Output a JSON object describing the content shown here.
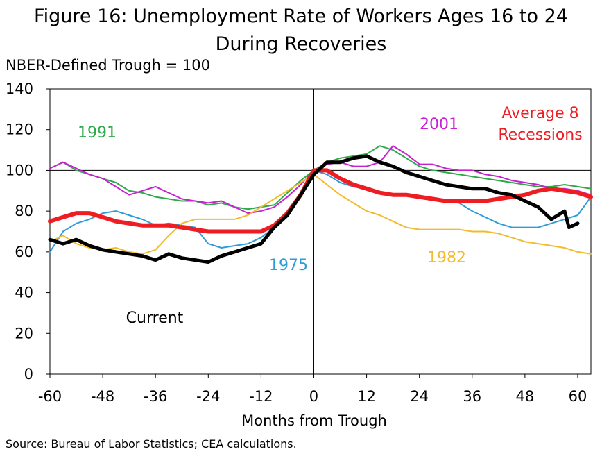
{
  "title_line1": "Figure 16: Unemployment Rate of Workers Ages 16 to 24",
  "title_line2": "During Recoveries",
  "subtitle": "NBER-Defined Trough = 100",
  "source": "Source: Bureau of Labor Statistics; CEA calculations.",
  "chart_data": {
    "type": "line",
    "title": "Figure 16: Unemployment Rate of Workers Ages 16 to 24 During Recoveries",
    "xlabel": "Months from Trough",
    "ylabel": "NBER-Defined Trough = 100",
    "xlim": [
      -60,
      63
    ],
    "ylim": [
      0,
      140
    ],
    "xticks": [
      -60,
      -48,
      -36,
      -24,
      -12,
      0,
      12,
      24,
      36,
      48,
      60
    ],
    "yticks": [
      0,
      20,
      40,
      60,
      80,
      100,
      120,
      140
    ],
    "reference_line_y": 100,
    "reference_line_x": 0,
    "grid": false,
    "series": [
      {
        "name": "1991",
        "color": "#2eaa4a",
        "width": 2,
        "x": [
          -60,
          -57,
          -54,
          -51,
          -48,
          -45,
          -42,
          -39,
          -36,
          -33,
          -30,
          -27,
          -24,
          -21,
          -18,
          -15,
          -12,
          -9,
          -6,
          -3,
          0,
          3,
          6,
          9,
          12,
          15,
          18,
          21,
          24,
          27,
          30,
          33,
          36,
          39,
          42,
          45,
          48,
          51,
          54,
          57,
          60,
          63
        ],
        "y": [
          101,
          104,
          100,
          98,
          96,
          94,
          90,
          89,
          87,
          86,
          85,
          85,
          83,
          84,
          82,
          81,
          82,
          83,
          89,
          95,
          100,
          104,
          106,
          107,
          108,
          112,
          110,
          106,
          102,
          100,
          99,
          98,
          97,
          96,
          95,
          94,
          93,
          92,
          92,
          93,
          92,
          91
        ]
      },
      {
        "name": "2001",
        "color": "#c81fd1",
        "width": 2,
        "x": [
          -60,
          -57,
          -54,
          -51,
          -48,
          -45,
          -42,
          -39,
          -36,
          -33,
          -30,
          -27,
          -24,
          -21,
          -18,
          -15,
          -12,
          -9,
          -6,
          -3,
          0,
          3,
          6,
          9,
          12,
          15,
          18,
          21,
          24,
          27,
          30,
          33,
          36,
          39,
          42,
          45,
          48,
          51,
          54,
          57,
          60,
          63
        ],
        "y": [
          101,
          104,
          101,
          98,
          96,
          92,
          88,
          90,
          92,
          89,
          86,
          85,
          84,
          85,
          82,
          79,
          80,
          82,
          87,
          93,
          100,
          103,
          104,
          102,
          102,
          104,
          112,
          108,
          103,
          103,
          101,
          100,
          100,
          98,
          97,
          95,
          94,
          93,
          91,
          91,
          90,
          88
        ]
      },
      {
        "name": "1975",
        "color": "#2e9cd6",
        "width": 2,
        "x": [
          -60,
          -57,
          -54,
          -51,
          -48,
          -45,
          -42,
          -39,
          -36,
          -33,
          -30,
          -27,
          -24,
          -21,
          -18,
          -15,
          -12,
          -9,
          -6,
          -3,
          0,
          3,
          6,
          9,
          12,
          15,
          18,
          21,
          24,
          27,
          30,
          33,
          36,
          39,
          42,
          45,
          48,
          51,
          54,
          57,
          60,
          63
        ],
        "y": [
          60,
          70,
          74,
          76,
          79,
          80,
          78,
          76,
          73,
          74,
          73,
          72,
          64,
          62,
          63,
          64,
          67,
          72,
          78,
          88,
          100,
          98,
          94,
          92,
          91,
          89,
          88,
          88,
          87,
          86,
          85,
          84,
          80,
          77,
          74,
          72,
          72,
          72,
          74,
          76,
          78,
          87
        ]
      },
      {
        "name": "1982",
        "color": "#f2bb2e",
        "width": 2,
        "x": [
          -60,
          -57,
          -54,
          -51,
          -48,
          -45,
          -42,
          -39,
          -36,
          -33,
          -30,
          -27,
          -24,
          -21,
          -18,
          -15,
          -12,
          -9,
          -6,
          -3,
          0,
          3,
          6,
          9,
          12,
          15,
          18,
          21,
          24,
          27,
          30,
          33,
          36,
          39,
          42,
          45,
          48,
          51,
          54,
          57,
          60,
          63
        ],
        "y": [
          65,
          68,
          64,
          62,
          61,
          62,
          60,
          59,
          61,
          68,
          74,
          76,
          76,
          76,
          76,
          78,
          82,
          86,
          90,
          94,
          98,
          93,
          88,
          84,
          80,
          78,
          75,
          72,
          71,
          71,
          71,
          71,
          70,
          70,
          69,
          67,
          65,
          64,
          63,
          62,
          60,
          59
        ]
      },
      {
        "name": "Average 8 Recessions",
        "color": "#ee1d23",
        "width": 6,
        "x": [
          -60,
          -57,
          -54,
          -51,
          -48,
          -45,
          -42,
          -39,
          -36,
          -33,
          -30,
          -27,
          -24,
          -21,
          -18,
          -15,
          -12,
          -9,
          -6,
          -3,
          0,
          3,
          6,
          9,
          12,
          15,
          18,
          21,
          24,
          27,
          30,
          33,
          36,
          39,
          42,
          45,
          48,
          51,
          54,
          57,
          60,
          63
        ],
        "y": [
          75,
          77,
          79,
          79,
          77,
          75,
          74,
          73,
          73,
          73,
          72,
          71,
          70,
          70,
          70,
          70,
          70,
          73,
          79,
          88,
          100,
          100,
          96,
          93,
          91,
          89,
          88,
          88,
          87,
          86,
          85,
          85,
          85,
          85,
          86,
          87,
          88,
          90,
          91,
          90,
          89,
          87
        ]
      },
      {
        "name": "Current",
        "color": "#000000",
        "width": 5,
        "x": [
          -60,
          -57,
          -54,
          -51,
          -48,
          -45,
          -42,
          -39,
          -36,
          -33,
          -30,
          -27,
          -24,
          -21,
          -18,
          -15,
          -12,
          -9,
          -6,
          -3,
          0,
          3,
          6,
          9,
          12,
          15,
          18,
          21,
          24,
          27,
          30,
          33,
          36,
          39,
          42,
          45,
          48,
          51,
          54,
          57,
          58,
          60
        ],
        "y": [
          66,
          64,
          66,
          63,
          61,
          60,
          59,
          58,
          56,
          59,
          57,
          56,
          55,
          58,
          60,
          62,
          64,
          72,
          78,
          88,
          98,
          104,
          104,
          106,
          107,
          104,
          102,
          99,
          97,
          95,
          93,
          92,
          91,
          91,
          89,
          88,
          85,
          82,
          76,
          80,
          72,
          74
        ]
      }
    ],
    "annotations": [
      {
        "text": "1991",
        "color": "#2eaa4a"
      },
      {
        "text": "2001",
        "color": "#c81fd1"
      },
      {
        "text": "Average 8\nRecessions",
        "color": "#ee1d23"
      },
      {
        "text": "1975",
        "color": "#2e9cd6"
      },
      {
        "text": "1982",
        "color": "#f2bb2e"
      },
      {
        "text": "Current",
        "color": "#000000"
      }
    ]
  }
}
